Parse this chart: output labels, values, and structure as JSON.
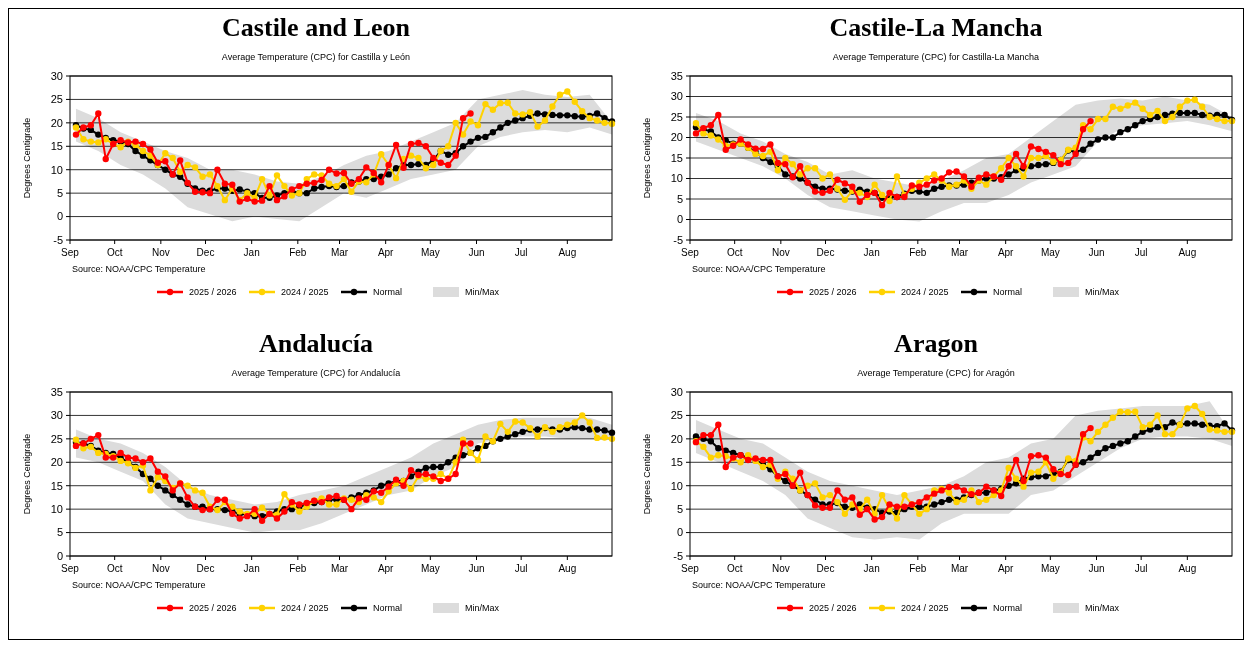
{
  "chart_data": [
    {
      "type": "line",
      "title": "Castile and Leon",
      "subtitle": "Average Temperature (CPC) for Castilla y León",
      "ylabel": "Degrees Centigrade",
      "annotations": [
        "Source: NOAA/CPC Temperature"
      ],
      "grid": "y",
      "legend": "bottom",
      "marker": "circle",
      "xlim": [
        "2025-09-01",
        "2026-08-31"
      ],
      "xticks": [
        {
          "value": "2025-09-01",
          "label": "Sep"
        },
        {
          "value": "2025-10-01",
          "label": "Oct"
        },
        {
          "value": "2025-11-01",
          "label": "Nov"
        },
        {
          "value": "2025-12-01",
          "label": "Dec"
        },
        {
          "value": "2026-01-01",
          "label": "Jan"
        },
        {
          "value": "2026-02-01",
          "label": "Feb"
        },
        {
          "value": "2026-03-01",
          "label": "Mar"
        },
        {
          "value": "2026-04-01",
          "label": "Apr"
        },
        {
          "value": "2026-05-01",
          "label": "May"
        },
        {
          "value": "2026-06-01",
          "label": "Jun"
        },
        {
          "value": "2026-07-01",
          "label": "Jul"
        },
        {
          "value": "2026-08-01",
          "label": "Aug"
        }
      ],
      "ylim": [
        -5,
        30
      ],
      "yticks": [
        -5,
        0,
        5,
        10,
        15,
        20,
        25,
        30
      ],
      "x": [
        "2025-09-05",
        "2025-09-10",
        "2025-09-15",
        "2025-09-20",
        "2025-09-25",
        "2025-09-30",
        "2025-10-05",
        "2025-10-10",
        "2025-10-15",
        "2025-10-20",
        "2025-10-25",
        "2025-10-30",
        "2025-11-04",
        "2025-11-09",
        "2025-11-14",
        "2025-11-19",
        "2025-11-24",
        "2025-11-29",
        "2025-12-04",
        "2025-12-09",
        "2025-12-14",
        "2025-12-19",
        "2025-12-24",
        "2025-12-29",
        "2026-01-03",
        "2026-01-08",
        "2026-01-13",
        "2026-01-18",
        "2026-01-23",
        "2026-01-28",
        "2026-02-02",
        "2026-02-07",
        "2026-02-12",
        "2026-02-17",
        "2026-02-22",
        "2026-02-27",
        "2026-03-04",
        "2026-03-09",
        "2026-03-14",
        "2026-03-19",
        "2026-03-24",
        "2026-03-29",
        "2026-04-03",
        "2026-04-08",
        "2026-04-13",
        "2026-04-18",
        "2026-04-23",
        "2026-04-28",
        "2026-05-03",
        "2026-05-08",
        "2026-05-13",
        "2026-05-18",
        "2026-05-23",
        "2026-05-28",
        "2026-06-02",
        "2026-06-07",
        "2026-06-12",
        "2026-06-17",
        "2026-06-22",
        "2026-06-27",
        "2026-07-02",
        "2026-07-07",
        "2026-07-12",
        "2026-07-17",
        "2026-07-22",
        "2026-07-27",
        "2026-08-01",
        "2026-08-06",
        "2026-08-11",
        "2026-08-16",
        "2026-08-21",
        "2026-08-26",
        "2026-08-31"
      ],
      "series": [
        {
          "name": "2025 / 2026",
          "color": "#ff0000",
          "values": [
            17.5,
            19,
            19.5,
            22,
            12.3,
            15.5,
            16.3,
            15.8,
            16,
            15.5,
            14.3,
            11.5,
            11.8,
            9,
            12,
            7.2,
            5.3,
            5.2,
            5,
            10,
            7,
            6.8,
            3.2,
            3.8,
            3.2,
            3.4,
            6.5,
            3.5,
            4.3,
            5.8,
            6.5,
            7,
            7.2,
            7.8,
            10,
            9.2,
            9.3,
            7,
            8,
            10.5,
            9.3,
            7.3,
            11,
            15.3,
            10.4,
            15.5,
            15.7,
            15,
            12.5,
            11.5,
            11,
            13,
            21,
            22,
            null,
            null,
            null,
            null,
            null,
            null,
            null,
            null,
            null,
            null,
            null,
            null,
            null,
            null,
            null,
            null,
            null,
            null,
            null
          ]
        },
        {
          "name": "2024 / 2025",
          "color": "#ffd200",
          "values": [
            19,
            16.5,
            16,
            15.8,
            16.5,
            15.5,
            14.8,
            16,
            15.3,
            14,
            13,
            11,
            13.5,
            12.5,
            9.5,
            11,
            10.5,
            8.5,
            9,
            6.5,
            3.5,
            6,
            3.5,
            5,
            4,
            8,
            4.5,
            8.8,
            6.5,
            4.5,
            5,
            8,
            9,
            8.8,
            7,
            6.5,
            8,
            5.3,
            7.5,
            7.3,
            9,
            13.3,
            11,
            8.2,
            12.3,
            13,
            12.5,
            10.3,
            11,
            14,
            15,
            20,
            17.5,
            20.3,
            19.5,
            24,
            22.8,
            24.2,
            24.3,
            22,
            21.8,
            22.3,
            19.2,
            20.5,
            23.5,
            26,
            26.7,
            24.5,
            22.5,
            21,
            20.5,
            20,
            19.8
          ]
        },
        {
          "name": "Normal",
          "color": "#000000",
          "values": [
            19.5,
            18.8,
            18.5,
            17.5,
            16.8,
            16.3,
            16,
            15.5,
            14,
            13,
            12,
            11,
            10,
            9,
            8.5,
            7,
            6,
            5.5,
            5.5,
            6,
            6,
            5.5,
            5.8,
            5.3,
            5,
            4,
            4,
            4.5,
            5,
            5.5,
            5,
            5,
            6,
            6.3,
            6.5,
            6.3,
            6.5,
            7.3,
            7.5,
            8,
            8,
            8.5,
            9,
            10.3,
            11,
            11,
            11.2,
            11,
            12,
            14,
            13.2,
            13.5,
            15,
            16,
            16.8,
            17,
            18,
            19,
            20,
            20.5,
            21,
            21.5,
            22,
            21.8,
            21.7,
            21.6,
            21.6,
            21.4,
            21.3,
            21.5,
            22,
            21,
            20.3
          ]
        },
        {
          "name": "Min/Max",
          "color": "#dcdcdc",
          "x": [
            "2025-09-05",
            "2025-09-20",
            "2025-10-05",
            "2025-10-20",
            "2025-11-04",
            "2025-11-19",
            "2025-12-04",
            "2025-12-19",
            "2026-01-03",
            "2026-01-18",
            "2026-02-02",
            "2026-02-17",
            "2026-03-04",
            "2026-03-19",
            "2026-04-03",
            "2026-04-18",
            "2026-05-03",
            "2026-05-18",
            "2026-06-02",
            "2026-06-17",
            "2026-07-02",
            "2026-07-17",
            "2026-08-01",
            "2026-08-16",
            "2026-08-31"
          ],
          "values": [
            null,
            null,
            null,
            null,
            null,
            null,
            null,
            null,
            null,
            null,
            null,
            null,
            null,
            null,
            null,
            null,
            null,
            null,
            null,
            null,
            null,
            null,
            null,
            null,
            null
          ],
          "upper": [
            23,
            21,
            18,
            16,
            14,
            12.5,
            10,
            10,
            9,
            7.5,
            7,
            8.5,
            11,
            13,
            14,
            16,
            18,
            20,
            25,
            26,
            27,
            26,
            25.5,
            26,
            20
          ],
          "lower": [
            16,
            14,
            11,
            9,
            6,
            2,
            0.5,
            -1,
            0,
            -0.5,
            -1,
            2,
            5,
            4,
            6,
            8,
            9,
            10,
            15,
            17,
            18,
            18.5,
            18,
            19,
            17.5
          ]
        }
      ]
    },
    {
      "type": "line",
      "title": "Castile-La Mancha",
      "subtitle": "Average Temperature (CPC) for Castilla-La Mancha",
      "ylabel": "Degrees Centigrade",
      "annotations": [
        "Source: NOAA/CPC Temperature"
      ],
      "grid": "y",
      "legend": "bottom",
      "marker": "circle",
      "xlim": [
        "2025-09-01",
        "2026-08-31"
      ],
      "xticks": [
        {
          "value": "2025-09-01",
          "label": "Sep"
        },
        {
          "value": "2025-10-01",
          "label": "Oct"
        },
        {
          "value": "2025-11-01",
          "label": "Nov"
        },
        {
          "value": "2025-12-01",
          "label": "Dec"
        },
        {
          "value": "2026-01-01",
          "label": "Jan"
        },
        {
          "value": "2026-02-01",
          "label": "Feb"
        },
        {
          "value": "2026-03-01",
          "label": "Mar"
        },
        {
          "value": "2026-04-01",
          "label": "Apr"
        },
        {
          "value": "2026-05-01",
          "label": "May"
        },
        {
          "value": "2026-06-01",
          "label": "Jun"
        },
        {
          "value": "2026-07-01",
          "label": "Jul"
        },
        {
          "value": "2026-08-01",
          "label": "Aug"
        }
      ],
      "ylim": [
        -5,
        35
      ],
      "yticks": [
        -5,
        0,
        5,
        10,
        15,
        20,
        25,
        30,
        35
      ],
      "x": [
        "2025-09-05",
        "2025-09-10",
        "2025-09-15",
        "2025-09-20",
        "2025-09-25",
        "2025-09-30",
        "2025-10-05",
        "2025-10-10",
        "2025-10-15",
        "2025-10-20",
        "2025-10-25",
        "2025-10-30",
        "2025-11-04",
        "2025-11-09",
        "2025-11-14",
        "2025-11-19",
        "2025-11-24",
        "2025-11-29",
        "2025-12-04",
        "2025-12-09",
        "2025-12-14",
        "2025-12-19",
        "2025-12-24",
        "2025-12-29",
        "2026-01-03",
        "2026-01-08",
        "2026-01-13",
        "2026-01-18",
        "2026-01-23",
        "2026-01-28",
        "2026-02-02",
        "2026-02-07",
        "2026-02-12",
        "2026-02-17",
        "2026-02-22",
        "2026-02-27",
        "2026-03-04",
        "2026-03-09",
        "2026-03-14",
        "2026-03-19",
        "2026-03-24",
        "2026-03-29",
        "2026-04-03",
        "2026-04-08",
        "2026-04-13",
        "2026-04-18",
        "2026-04-23",
        "2026-04-28",
        "2026-05-03",
        "2026-05-08",
        "2026-05-13",
        "2026-05-18",
        "2026-05-23",
        "2026-05-28",
        "2026-06-02",
        "2026-06-07",
        "2026-06-12",
        "2026-06-17",
        "2026-06-22",
        "2026-06-27",
        "2026-07-02",
        "2026-07-07",
        "2026-07-12",
        "2026-07-17",
        "2026-07-22",
        "2026-07-27",
        "2026-08-01",
        "2026-08-06",
        "2026-08-11",
        "2026-08-16",
        "2026-08-21",
        "2026-08-26",
        "2026-08-31"
      ],
      "series": [
        {
          "name": "2025 / 2026",
          "color": "#ff0000",
          "values": [
            21,
            22.3,
            23,
            25.5,
            17,
            18,
            19.5,
            18.3,
            17.3,
            17.2,
            18.3,
            13.8,
            13.5,
            10.3,
            13,
            9,
            6.8,
            6.5,
            7,
            9.7,
            8.8,
            8,
            4.3,
            6,
            6.5,
            3.5,
            6.5,
            5.5,
            5.5,
            8.3,
            8,
            8.5,
            9.5,
            10,
            11.5,
            11.7,
            10.5,
            8,
            10.2,
            11,
            10.5,
            9.7,
            13,
            16,
            13,
            17.8,
            17.2,
            16.5,
            15.7,
            13.5,
            13.8,
            16,
            22,
            24,
            null,
            null,
            null,
            null,
            null,
            null,
            null,
            null,
            null,
            null,
            null,
            null,
            null,
            null,
            null,
            null,
            null,
            null,
            null
          ]
        },
        {
          "name": "2024 / 2025",
          "color": "#ffd200",
          "values": [
            23.5,
            21,
            20.5,
            19.5,
            18,
            18.3,
            18.5,
            17.5,
            16,
            15.5,
            16.5,
            12,
            15,
            13.5,
            11,
            12.5,
            12.5,
            10,
            11,
            7.5,
            4.8,
            7,
            6.5,
            5.5,
            8.5,
            6,
            4.5,
            10.5,
            6,
            7.5,
            9,
            10,
            11,
            9.5,
            8,
            8.5,
            9.5,
            7.5,
            9.5,
            8.5,
            10.5,
            12.5,
            15,
            13,
            10.5,
            15,
            15,
            15.5,
            14,
            14.5,
            17,
            17.5,
            23,
            22,
            24.5,
            24.5,
            27.5,
            27,
            27.8,
            28.5,
            27,
            25.5,
            26.5,
            24,
            25,
            27.5,
            29,
            29.2,
            27.5,
            25,
            24.5,
            24,
            24
          ]
        },
        {
          "name": "Normal",
          "color": "#000000",
          "values": [
            22.5,
            22,
            21.5,
            20,
            19.3,
            18.5,
            18.5,
            17.5,
            16.5,
            15,
            14,
            13,
            11,
            10.5,
            10,
            9,
            8,
            7.5,
            7.5,
            7.3,
            7,
            6.8,
            7.3,
            6.8,
            6.5,
            5.3,
            5.5,
            5.5,
            6.3,
            7,
            6.8,
            6.5,
            7.5,
            8,
            8.3,
            8.3,
            8.5,
            9,
            9.5,
            10,
            10,
            10.3,
            11,
            12,
            12.5,
            13,
            13.3,
            13.5,
            13.8,
            14.5,
            16.8,
            16.5,
            17,
            18.5,
            19.5,
            20,
            20,
            21.3,
            22,
            23,
            24,
            24.5,
            25,
            25.5,
            25.8,
            26,
            26,
            26,
            25.5,
            25.3,
            25.5,
            25.5,
            24.3
          ]
        },
        {
          "name": "Min/Max",
          "color": "#dcdcdc",
          "x": [
            "2025-09-05",
            "2025-09-20",
            "2025-10-05",
            "2025-10-20",
            "2025-11-04",
            "2025-11-19",
            "2025-12-04",
            "2025-12-19",
            "2026-01-03",
            "2026-01-18",
            "2026-02-02",
            "2026-02-17",
            "2026-03-04",
            "2026-03-19",
            "2026-04-03",
            "2026-04-18",
            "2026-05-03",
            "2026-05-18",
            "2026-06-02",
            "2026-06-17",
            "2026-07-02",
            "2026-07-17",
            "2026-08-01",
            "2026-08-16",
            "2026-08-31"
          ],
          "values": [
            null,
            null,
            null,
            null,
            null,
            null,
            null,
            null,
            null,
            null,
            null,
            null,
            null,
            null,
            null,
            null,
            null,
            null,
            null,
            null,
            null,
            null,
            null,
            null,
            null
          ],
          "upper": [
            26,
            24,
            21,
            19,
            16,
            14,
            11,
            12,
            10,
            9,
            8,
            9.5,
            12,
            15,
            16,
            20,
            24,
            28,
            29,
            29.5,
            29,
            30,
            29,
            28,
            25
          ],
          "lower": [
            19,
            17,
            15,
            13,
            10,
            6,
            3,
            2,
            1,
            0,
            -0.5,
            2,
            4,
            4,
            6,
            9,
            11,
            13,
            19,
            22,
            23,
            23.5,
            24,
            23,
            21.5
          ]
        }
      ]
    },
    {
      "type": "line",
      "title": "Andalucía",
      "subtitle": "Average Temperature (CPC) for Andalucía",
      "ylabel": "Degrees Centigrade",
      "annotations": [
        "Source: NOAA/CPC Temperature"
      ],
      "grid": "y",
      "legend": "bottom",
      "marker": "circle",
      "xlim": [
        "2025-09-01",
        "2026-08-31"
      ],
      "xticks": [
        {
          "value": "2025-09-01",
          "label": "Sep"
        },
        {
          "value": "2025-10-01",
          "label": "Oct"
        },
        {
          "value": "2025-11-01",
          "label": "Nov"
        },
        {
          "value": "2025-12-01",
          "label": "Dec"
        },
        {
          "value": "2026-01-01",
          "label": "Jan"
        },
        {
          "value": "2026-02-01",
          "label": "Feb"
        },
        {
          "value": "2026-03-01",
          "label": "Mar"
        },
        {
          "value": "2026-04-01",
          "label": "Apr"
        },
        {
          "value": "2026-05-01",
          "label": "May"
        },
        {
          "value": "2026-06-01",
          "label": "Jun"
        },
        {
          "value": "2026-07-01",
          "label": "Jul"
        },
        {
          "value": "2026-08-01",
          "label": "Aug"
        }
      ],
      "ylim": [
        0,
        35
      ],
      "yticks": [
        0,
        5,
        10,
        15,
        20,
        25,
        30,
        35
      ],
      "x": [
        "2025-09-05",
        "2025-09-10",
        "2025-09-15",
        "2025-09-20",
        "2025-09-25",
        "2025-09-30",
        "2025-10-05",
        "2025-10-10",
        "2025-10-15",
        "2025-10-20",
        "2025-10-25",
        "2025-10-30",
        "2025-11-04",
        "2025-11-09",
        "2025-11-14",
        "2025-11-19",
        "2025-11-24",
        "2025-11-29",
        "2025-12-04",
        "2025-12-09",
        "2025-12-14",
        "2025-12-19",
        "2025-12-24",
        "2025-12-29",
        "2026-01-03",
        "2026-01-08",
        "2026-01-13",
        "2026-01-18",
        "2026-01-23",
        "2026-01-28",
        "2026-02-02",
        "2026-02-07",
        "2026-02-12",
        "2026-02-17",
        "2026-02-22",
        "2026-02-27",
        "2026-03-04",
        "2026-03-09",
        "2026-03-14",
        "2026-03-19",
        "2026-03-24",
        "2026-03-29",
        "2026-04-03",
        "2026-04-08",
        "2026-04-13",
        "2026-04-18",
        "2026-04-23",
        "2026-04-28",
        "2026-05-03",
        "2026-05-08",
        "2026-05-13",
        "2026-05-18",
        "2026-05-23",
        "2026-05-28",
        "2026-06-02",
        "2026-06-07",
        "2026-06-12",
        "2026-06-17",
        "2026-06-22",
        "2026-06-27",
        "2026-07-02",
        "2026-07-07",
        "2026-07-12",
        "2026-07-17",
        "2026-07-22",
        "2026-07-27",
        "2026-08-01",
        "2026-08-06",
        "2026-08-11",
        "2026-08-16",
        "2026-08-21",
        "2026-08-26",
        "2026-08-31"
      ],
      "series": [
        {
          "name": "2025 / 2026",
          "color": "#ff0000",
          "values": [
            23.5,
            24,
            25,
            25.8,
            21,
            21,
            22,
            21,
            20.8,
            20,
            20.8,
            18,
            17,
            14,
            15.5,
            12.5,
            10.5,
            9.8,
            10,
            12,
            12,
            9,
            8,
            8.5,
            10,
            7.5,
            9,
            8,
            9.5,
            11.5,
            11,
            11.3,
            11.8,
            11.5,
            12.5,
            12.8,
            12,
            10,
            12.3,
            12,
            13.8,
            13.5,
            14.8,
            16.3,
            15,
            18.3,
            17.3,
            17.5,
            17,
            16,
            16.5,
            17.5,
            24,
            24,
            null,
            null,
            null,
            null,
            null,
            null,
            null,
            null,
            null,
            null,
            null,
            null,
            null,
            null,
            null,
            null,
            null,
            null,
            null
          ]
        },
        {
          "name": "2024 / 2025",
          "color": "#ffd200",
          "values": [
            24.8,
            23,
            23.3,
            22,
            21.8,
            21.3,
            20.3,
            19.8,
            18.8,
            19.3,
            14,
            16.8,
            16,
            14.5,
            15.5,
            15,
            14,
            13.5,
            10.5,
            9.8,
            11.5,
            10.5,
            9.5,
            9,
            9,
            10.3,
            9,
            8.8,
            13.2,
            11,
            9.5,
            10.5,
            11.8,
            12.3,
            11,
            11,
            12.3,
            12,
            11.5,
            13,
            12.5,
            11.5,
            13.8,
            15.5,
            16,
            14.3,
            17,
            16.5,
            16.5,
            17.5,
            16.5,
            20,
            24.8,
            22,
            20.5,
            25.5,
            24.5,
            28.2,
            26.5,
            28.7,
            28.5,
            27.3,
            25.5,
            27.5,
            26.5,
            27.5,
            28,
            28.5,
            30,
            28.5,
            25.2,
            25.3,
            25
          ]
        },
        {
          "name": "Normal",
          "color": "#000000",
          "values": [
            24.3,
            24,
            23.5,
            22.5,
            22,
            21.8,
            21,
            20,
            19,
            17.5,
            16.5,
            15,
            14,
            13,
            12,
            11,
            10.5,
            10.5,
            10,
            10,
            9.8,
            9.5,
            9,
            8.8,
            8.5,
            8.5,
            9,
            9.5,
            10,
            10,
            10.5,
            11,
            11.3,
            11.5,
            12,
            12,
            12,
            12.5,
            13,
            13.5,
            14,
            15,
            15.5,
            16,
            16,
            17,
            18,
            18.8,
            19,
            19,
            20,
            21,
            21.5,
            22,
            23,
            23.5,
            24.5,
            25,
            25.5,
            26,
            26.5,
            27,
            27,
            27.3,
            27,
            27,
            27.3,
            27.5,
            27.3,
            27,
            27,
            26.8,
            26.3
          ]
        },
        {
          "name": "Min/Max",
          "color": "#dcdcdc",
          "x": [
            "2025-09-05",
            "2025-09-20",
            "2025-10-05",
            "2025-10-20",
            "2025-11-04",
            "2025-11-19",
            "2025-12-04",
            "2025-12-19",
            "2026-01-03",
            "2026-01-18",
            "2026-02-02",
            "2026-02-17",
            "2026-03-04",
            "2026-03-19",
            "2026-04-03",
            "2026-04-18",
            "2026-05-03",
            "2026-05-18",
            "2026-06-02",
            "2026-06-17",
            "2026-07-02",
            "2026-07-17",
            "2026-08-01",
            "2026-08-16",
            "2026-08-31"
          ],
          "values": [
            null,
            null,
            null,
            null,
            null,
            null,
            null,
            null,
            null,
            null,
            null,
            null,
            null,
            null,
            null,
            null,
            null,
            null,
            null,
            null,
            null,
            null,
            null,
            null,
            null
          ],
          "upper": [
            27,
            25,
            24,
            22,
            19,
            15,
            13,
            12,
            11,
            11.5,
            13,
            14,
            15,
            17,
            19,
            21,
            24,
            26,
            28,
            29,
            29.5,
            29.5,
            29.5,
            29.5,
            28
          ],
          "lower": [
            21,
            20,
            18,
            16,
            11,
            8,
            7,
            6,
            5,
            5.5,
            5.5,
            7,
            9,
            11,
            13,
            14,
            17,
            19,
            24,
            25,
            25.5,
            25.5,
            25,
            25,
            25
          ]
        }
      ]
    },
    {
      "type": "line",
      "title": "Aragon",
      "subtitle": "Average Temperature (CPC) for Aragón",
      "ylabel": "Degrees Centigrade",
      "annotations": [
        "Source: NOAA/CPC Temperature"
      ],
      "grid": "y",
      "legend": "bottom",
      "marker": "circle",
      "xlim": [
        "2025-09-01",
        "2026-08-31"
      ],
      "xticks": [
        {
          "value": "2025-09-01",
          "label": "Sep"
        },
        {
          "value": "2025-10-01",
          "label": "Oct"
        },
        {
          "value": "2025-11-01",
          "label": "Nov"
        },
        {
          "value": "2025-12-01",
          "label": "Dec"
        },
        {
          "value": "2026-01-01",
          "label": "Jan"
        },
        {
          "value": "2026-02-01",
          "label": "Feb"
        },
        {
          "value": "2026-03-01",
          "label": "Mar"
        },
        {
          "value": "2026-04-01",
          "label": "Apr"
        },
        {
          "value": "2026-05-01",
          "label": "May"
        },
        {
          "value": "2026-06-01",
          "label": "Jun"
        },
        {
          "value": "2026-07-01",
          "label": "Jul"
        },
        {
          "value": "2026-08-01",
          "label": "Aug"
        }
      ],
      "ylim": [
        -5,
        30
      ],
      "yticks": [
        -5,
        0,
        5,
        10,
        15,
        20,
        25,
        30
      ],
      "x": [
        "2025-09-05",
        "2025-09-10",
        "2025-09-15",
        "2025-09-20",
        "2025-09-25",
        "2025-09-30",
        "2025-10-05",
        "2025-10-10",
        "2025-10-15",
        "2025-10-20",
        "2025-10-25",
        "2025-10-30",
        "2025-11-04",
        "2025-11-09",
        "2025-11-14",
        "2025-11-19",
        "2025-11-24",
        "2025-11-29",
        "2025-12-04",
        "2025-12-09",
        "2025-12-14",
        "2025-12-19",
        "2025-12-24",
        "2025-12-29",
        "2026-01-03",
        "2026-01-08",
        "2026-01-13",
        "2026-01-18",
        "2026-01-23",
        "2026-01-28",
        "2026-02-02",
        "2026-02-07",
        "2026-02-12",
        "2026-02-17",
        "2026-02-22",
        "2026-02-27",
        "2026-03-04",
        "2026-03-09",
        "2026-03-14",
        "2026-03-19",
        "2026-03-24",
        "2026-03-29",
        "2026-04-03",
        "2026-04-08",
        "2026-04-13",
        "2026-04-18",
        "2026-04-23",
        "2026-04-28",
        "2026-05-03",
        "2026-05-08",
        "2026-05-13",
        "2026-05-18",
        "2026-05-23",
        "2026-05-28",
        "2026-06-02",
        "2026-06-07",
        "2026-06-12",
        "2026-06-17",
        "2026-06-22",
        "2026-06-27",
        "2026-07-02",
        "2026-07-07",
        "2026-07-12",
        "2026-07-17",
        "2026-07-22",
        "2026-07-27",
        "2026-08-01",
        "2026-08-06",
        "2026-08-11",
        "2026-08-16",
        "2026-08-21",
        "2026-08-26",
        "2026-08-31"
      ],
      "series": [
        {
          "name": "2025 / 2026",
          "color": "#ff0000",
          "values": [
            19.3,
            20.8,
            20.8,
            23,
            14,
            16,
            16.5,
            15.5,
            15.8,
            15.5,
            15.5,
            12,
            12.5,
            10,
            12.8,
            8,
            5.8,
            5.3,
            5.3,
            9,
            7,
            7.5,
            3.8,
            5,
            2.8,
            3.3,
            6,
            5.5,
            5.5,
            6,
            6.5,
            7.5,
            8.3,
            9,
            9.7,
            9.8,
            9,
            8.2,
            8.5,
            9.8,
            9,
            7.8,
            11.5,
            15.5,
            11,
            16.3,
            16.5,
            16,
            13.5,
            12.5,
            12.3,
            14.5,
            21,
            22.3,
            null,
            null,
            null,
            null,
            null,
            null,
            null,
            null,
            null,
            null,
            null,
            null,
            null,
            null,
            null,
            null,
            null,
            null,
            null
          ]
        },
        {
          "name": "2024 / 2025",
          "color": "#ffd200",
          "values": [
            19.5,
            18.3,
            16,
            16.5,
            16.3,
            15.8,
            15,
            16.5,
            15.3,
            14,
            14.5,
            11.5,
            13,
            11.5,
            9,
            10,
            10.5,
            7.5,
            8,
            6.5,
            4,
            6,
            5,
            7,
            4,
            8,
            5,
            3,
            8,
            6,
            4,
            5,
            9,
            9.3,
            8.5,
            6.5,
            7,
            9,
            6.5,
            7,
            8,
            9,
            13.8,
            11.5,
            9.8,
            12.8,
            13,
            15,
            11.5,
            12.8,
            15.8,
            15.3,
            20.3,
            19.5,
            21.5,
            23,
            24.5,
            25.8,
            25.7,
            25.8,
            22.5,
            23,
            25,
            21,
            21,
            23,
            26.5,
            27,
            25.3,
            22,
            21.8,
            21.5,
            21.5
          ]
        },
        {
          "name": "Normal",
          "color": "#000000",
          "values": [
            20.5,
            20,
            19.5,
            18,
            17.5,
            17,
            16.5,
            16,
            15.5,
            14.5,
            13.5,
            12,
            11,
            10,
            9,
            8,
            7,
            6,
            6,
            6.3,
            5.5,
            5.3,
            6,
            5.3,
            5,
            4.2,
            4.5,
            4.3,
            5,
            5.5,
            5.5,
            5.5,
            6,
            6.5,
            7,
            7,
            7.5,
            8,
            8.5,
            8.5,
            9,
            9.3,
            10,
            10.5,
            11.5,
            11.8,
            12,
            12,
            12.5,
            13,
            15.5,
            14.5,
            15,
            16,
            17,
            18,
            18.5,
            19,
            19.5,
            20.5,
            21.5,
            22,
            22.5,
            22.5,
            23.5,
            23,
            23.3,
            23.3,
            23,
            22.8,
            22.7,
            23.3,
            21.8
          ]
        },
        {
          "name": "Min/Max",
          "color": "#dcdcdc",
          "x": [
            "2025-09-05",
            "2025-09-20",
            "2025-10-05",
            "2025-10-20",
            "2025-11-04",
            "2025-11-19",
            "2025-12-04",
            "2025-12-19",
            "2026-01-03",
            "2026-01-18",
            "2026-02-02",
            "2026-02-17",
            "2026-03-04",
            "2026-03-19",
            "2026-04-03",
            "2026-04-18",
            "2026-05-03",
            "2026-05-18",
            "2026-06-02",
            "2026-06-17",
            "2026-07-02",
            "2026-07-17",
            "2026-08-01",
            "2026-08-16",
            "2026-08-31"
          ],
          "values": [
            null,
            null,
            null,
            null,
            null,
            null,
            null,
            null,
            null,
            null,
            null,
            null,
            null,
            null,
            null,
            null,
            null,
            null,
            null,
            null,
            null,
            null,
            null,
            null,
            null
          ],
          "upper": [
            24,
            22,
            20,
            19,
            16,
            13,
            11,
            10,
            9,
            8,
            9,
            10,
            12,
            15,
            16,
            19,
            20,
            25,
            26,
            26.5,
            27,
            27,
            27,
            28,
            21
          ],
          "lower": [
            17,
            15,
            13,
            11,
            8,
            3,
            1,
            -1,
            -1.5,
            -1,
            -1.5,
            2,
            4,
            4,
            4,
            8,
            9,
            12,
            15,
            18,
            20,
            20.5,
            20.5,
            20,
            18.5
          ]
        }
      ]
    }
  ]
}
